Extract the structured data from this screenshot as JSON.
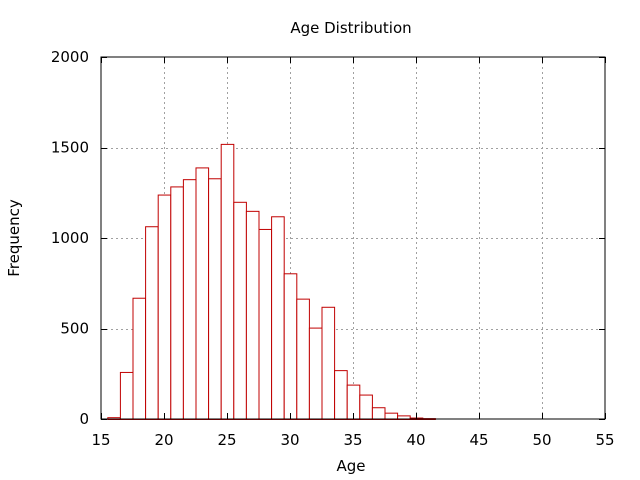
{
  "chart_data": {
    "type": "bar",
    "title": "Age Distribution",
    "xlabel": "Age",
    "ylabel": "Frequency",
    "xlim": [
      15,
      55
    ],
    "ylim": [
      0,
      2000
    ],
    "x_ticks": [
      "15",
      "20",
      "25",
      "30",
      "35",
      "40",
      "45",
      "50",
      "55"
    ],
    "y_ticks": [
      "0",
      "500",
      "1000",
      "1500",
      "2000"
    ],
    "grid": true,
    "legend": "none",
    "bar_color": "#c00000",
    "bin_width": 1,
    "bins": [
      {
        "start": 15.5,
        "value": 10
      },
      {
        "start": 16.5,
        "value": 260
      },
      {
        "start": 17.5,
        "value": 670
      },
      {
        "start": 18.5,
        "value": 1065
      },
      {
        "start": 19.5,
        "value": 1240
      },
      {
        "start": 20.5,
        "value": 1285
      },
      {
        "start": 21.5,
        "value": 1325
      },
      {
        "start": 22.5,
        "value": 1390
      },
      {
        "start": 23.5,
        "value": 1330
      },
      {
        "start": 24.5,
        "value": 1520
      },
      {
        "start": 25.5,
        "value": 1200
      },
      {
        "start": 26.5,
        "value": 1150
      },
      {
        "start": 27.5,
        "value": 1050
      },
      {
        "start": 28.5,
        "value": 1120
      },
      {
        "start": 29.5,
        "value": 805
      },
      {
        "start": 30.5,
        "value": 665
      },
      {
        "start": 31.5,
        "value": 505
      },
      {
        "start": 32.5,
        "value": 620
      },
      {
        "start": 33.5,
        "value": 270
      },
      {
        "start": 34.5,
        "value": 190
      },
      {
        "start": 35.5,
        "value": 135
      },
      {
        "start": 36.5,
        "value": 65
      },
      {
        "start": 37.5,
        "value": 35
      },
      {
        "start": 38.5,
        "value": 20
      },
      {
        "start": 39.5,
        "value": 8
      },
      {
        "start": 40.5,
        "value": 5
      }
    ]
  }
}
